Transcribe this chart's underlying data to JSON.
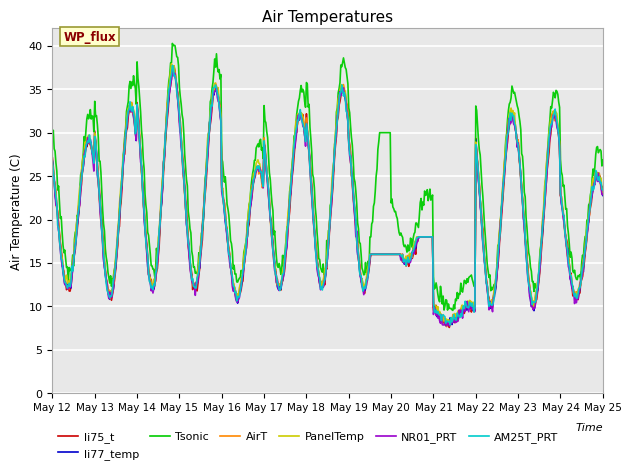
{
  "title": "Air Temperatures",
  "ylabel": "Air Temperature (C)",
  "xlabel": "Time",
  "ylim": [
    0,
    42
  ],
  "yticks": [
    0,
    5,
    10,
    15,
    20,
    25,
    30,
    35,
    40
  ],
  "bg_color": "#e8e8e8",
  "fig_color": "#ffffff",
  "legend_items": [
    {
      "label": "li75_t",
      "color": "#cc0000",
      "lw": 1.2
    },
    {
      "label": "li77_temp",
      "color": "#0000cc",
      "lw": 1.2
    },
    {
      "label": "Tsonic",
      "color": "#00cc00",
      "lw": 1.2
    },
    {
      "label": "AirT",
      "color": "#ff8800",
      "lw": 1.2
    },
    {
      "label": "PanelTemp",
      "color": "#cccc00",
      "lw": 1.2
    },
    {
      "label": "NR01_PRT",
      "color": "#9900cc",
      "lw": 1.2
    },
    {
      "label": "AM25T_PRT",
      "color": "#00cccc",
      "lw": 1.2
    }
  ],
  "xtick_labels": [
    "May 12",
    "May 13",
    "May 14",
    "May 15",
    "May 16",
    "May 17",
    "May 18",
    "May 19",
    "May 20",
    "May 21",
    "May 22",
    "May 23",
    "May 24",
    "May 25"
  ],
  "wp_flux_text": "WP_flux",
  "n_days": 13,
  "pts_per_day": 48
}
